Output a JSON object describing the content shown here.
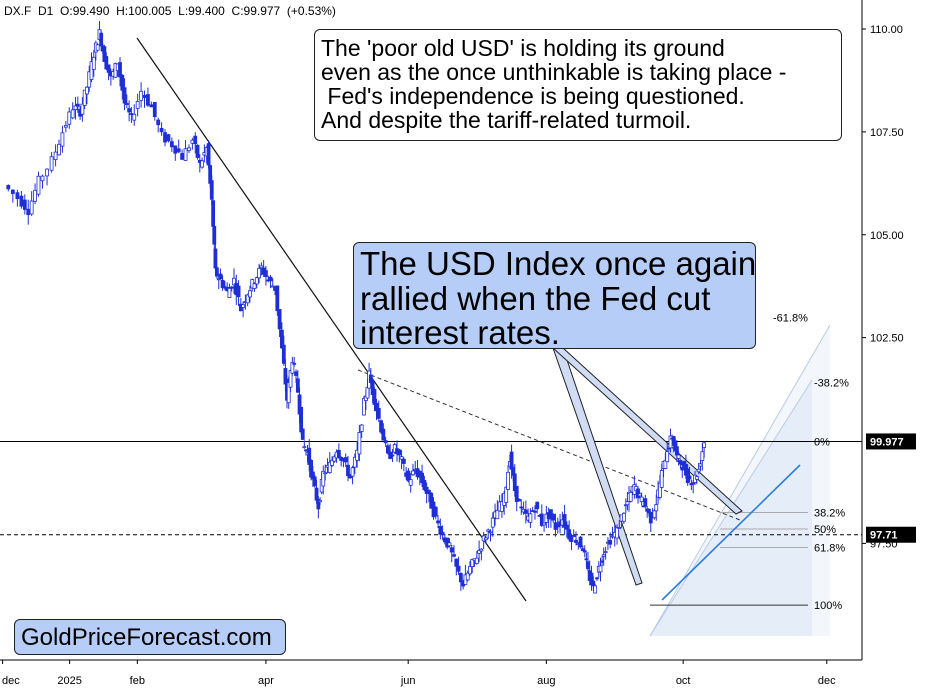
{
  "header": {
    "symbol": "DX.F",
    "interval": "D1",
    "open": "O:99.490",
    "high": "H:100.005",
    "low": "L:99.400",
    "close": "C:99.977",
    "change": "(+0.53%)"
  },
  "annotations": {
    "box1_lines": [
      "The 'poor old USD' is holding its ground",
      "even as the once unthinkable is taking place -",
      " Fed's independence is being questioned.",
      "And despite the tariff-related turmoil."
    ],
    "box2_lines": [
      "The USD Index once again",
      "rallied when the Fed cut",
      "interest rates."
    ]
  },
  "watermark": "GoldPriceForecast.com",
  "colors": {
    "candle": "#1f2fd6",
    "fib_fill": "#dfe8f8",
    "trend": "#111111",
    "blue_trend": "#2a7de1",
    "tag_bg": "#000000"
  },
  "chart_data": {
    "type": "candlestick",
    "y_ticks": [
      "110.00",
      "107.50",
      "105.00",
      "102.50",
      "97.50"
    ],
    "x_ticks": [
      "dec",
      "2025",
      "feb",
      "apr",
      "jun",
      "aug",
      "oct",
      "dec"
    ],
    "ylim": [
      95.3,
      110.6
    ],
    "price_tags": [
      {
        "label": "99.977",
        "value": 99.977
      },
      {
        "label": "97.71",
        "value": 97.71
      }
    ],
    "fib_levels": [
      {
        "label": "-61.8%",
        "value": 102.7
      },
      {
        "label": "-38.2%",
        "value": 101.6
      },
      {
        "label": "0%",
        "value": 99.977
      },
      {
        "label": "38.2%",
        "value": 98.25
      },
      {
        "label": "50%",
        "value": 97.85
      },
      {
        "label": "61.8%",
        "value": 97.4
      },
      {
        "label": "100%",
        "value": 96.0
      }
    ],
    "series_close": [
      {
        "m": 0,
        "v": 106.2
      },
      {
        "m": 0.2,
        "v": 105.9
      },
      {
        "m": 0.35,
        "v": 105.6
      },
      {
        "m": 0.5,
        "v": 106.3
      },
      {
        "m": 0.7,
        "v": 106.8
      },
      {
        "m": 0.85,
        "v": 107.5
      },
      {
        "m": 1.0,
        "v": 108.1
      },
      {
        "m": 1.1,
        "v": 108.0
      },
      {
        "m": 1.2,
        "v": 108.6
      },
      {
        "m": 1.3,
        "v": 109.4
      },
      {
        "m": 1.38,
        "v": 109.9
      },
      {
        "m": 1.45,
        "v": 109.3
      },
      {
        "m": 1.55,
        "v": 108.8
      },
      {
        "m": 1.65,
        "v": 109.2
      },
      {
        "m": 1.75,
        "v": 108.2
      },
      {
        "m": 1.85,
        "v": 107.8
      },
      {
        "m": 2.0,
        "v": 108.5
      },
      {
        "m": 2.15,
        "v": 108.1
      },
      {
        "m": 2.3,
        "v": 107.4
      },
      {
        "m": 2.45,
        "v": 107.2
      },
      {
        "m": 2.6,
        "v": 106.9
      },
      {
        "m": 2.75,
        "v": 107.3
      },
      {
        "m": 2.85,
        "v": 106.7
      },
      {
        "m": 2.95,
        "v": 107.1
      },
      {
        "m": 3.02,
        "v": 105.8
      },
      {
        "m": 3.07,
        "v": 104.1
      },
      {
        "m": 3.15,
        "v": 103.9
      },
      {
        "m": 3.25,
        "v": 103.6
      },
      {
        "m": 3.35,
        "v": 103.9
      },
      {
        "m": 3.45,
        "v": 103.2
      },
      {
        "m": 3.55,
        "v": 103.6
      },
      {
        "m": 3.65,
        "v": 103.9
      },
      {
        "m": 3.75,
        "v": 104.2
      },
      {
        "m": 3.85,
        "v": 103.9
      },
      {
        "m": 3.95,
        "v": 103.7
      },
      {
        "m": 4.05,
        "v": 102.2
      },
      {
        "m": 4.12,
        "v": 101.0
      },
      {
        "m": 4.2,
        "v": 102.0
      },
      {
        "m": 4.28,
        "v": 101.2
      },
      {
        "m": 4.35,
        "v": 99.9
      },
      {
        "m": 4.42,
        "v": 99.7
      },
      {
        "m": 4.5,
        "v": 99.0
      },
      {
        "m": 4.58,
        "v": 98.4
      },
      {
        "m": 4.65,
        "v": 99.2
      },
      {
        "m": 4.75,
        "v": 99.4
      },
      {
        "m": 4.85,
        "v": 99.8
      },
      {
        "m": 4.95,
        "v": 99.5
      },
      {
        "m": 5.05,
        "v": 99.1
      },
      {
        "m": 5.15,
        "v": 99.7
      },
      {
        "m": 5.25,
        "v": 100.9
      },
      {
        "m": 5.32,
        "v": 101.6
      },
      {
        "m": 5.4,
        "v": 101.0
      },
      {
        "m": 5.5,
        "v": 100.3
      },
      {
        "m": 5.6,
        "v": 99.6
      },
      {
        "m": 5.7,
        "v": 99.8
      },
      {
        "m": 5.8,
        "v": 99.5
      },
      {
        "m": 5.9,
        "v": 99.0
      },
      {
        "m": 6.0,
        "v": 99.3
      },
      {
        "m": 6.1,
        "v": 99.0
      },
      {
        "m": 6.2,
        "v": 98.6
      },
      {
        "m": 6.3,
        "v": 98.1
      },
      {
        "m": 6.4,
        "v": 97.7
      },
      {
        "m": 6.5,
        "v": 97.4
      },
      {
        "m": 6.6,
        "v": 96.9
      },
      {
        "m": 6.7,
        "v": 96.5
      },
      {
        "m": 6.8,
        "v": 96.9
      },
      {
        "m": 6.9,
        "v": 97.2
      },
      {
        "m": 7.0,
        "v": 97.6
      },
      {
        "m": 7.1,
        "v": 97.9
      },
      {
        "m": 7.2,
        "v": 98.3
      },
      {
        "m": 7.3,
        "v": 98.6
      },
      {
        "m": 7.38,
        "v": 99.6
      },
      {
        "m": 7.45,
        "v": 98.8
      },
      {
        "m": 7.55,
        "v": 98.3
      },
      {
        "m": 7.65,
        "v": 98.1
      },
      {
        "m": 7.75,
        "v": 98.4
      },
      {
        "m": 7.85,
        "v": 98.0
      },
      {
        "m": 7.95,
        "v": 98.2
      },
      {
        "m": 8.05,
        "v": 97.9
      },
      {
        "m": 8.15,
        "v": 98.1
      },
      {
        "m": 8.25,
        "v": 97.7
      },
      {
        "m": 8.35,
        "v": 97.6
      },
      {
        "m": 8.45,
        "v": 97.4
      },
      {
        "m": 8.52,
        "v": 96.8
      },
      {
        "m": 8.6,
        "v": 96.4
      },
      {
        "m": 8.68,
        "v": 96.9
      },
      {
        "m": 8.75,
        "v": 97.3
      },
      {
        "m": 8.85,
        "v": 97.6
      },
      {
        "m": 8.95,
        "v": 97.8
      },
      {
        "m": 9.05,
        "v": 98.3
      },
      {
        "m": 9.12,
        "v": 98.6
      },
      {
        "m": 9.2,
        "v": 98.9
      },
      {
        "m": 9.28,
        "v": 98.6
      },
      {
        "m": 9.36,
        "v": 98.4
      },
      {
        "m": 9.44,
        "v": 98.1
      },
      {
        "m": 9.52,
        "v": 98.5
      },
      {
        "m": 9.6,
        "v": 99.2
      },
      {
        "m": 9.68,
        "v": 99.8
      },
      {
        "m": 9.75,
        "v": 100.1
      },
      {
        "m": 9.82,
        "v": 99.6
      },
      {
        "m": 9.9,
        "v": 99.4
      },
      {
        "m": 9.98,
        "v": 99.1
      },
      {
        "m": 10.06,
        "v": 99.0
      },
      {
        "m": 10.14,
        "v": 99.3
      },
      {
        "m": 10.22,
        "v": 99.977
      }
    ]
  }
}
